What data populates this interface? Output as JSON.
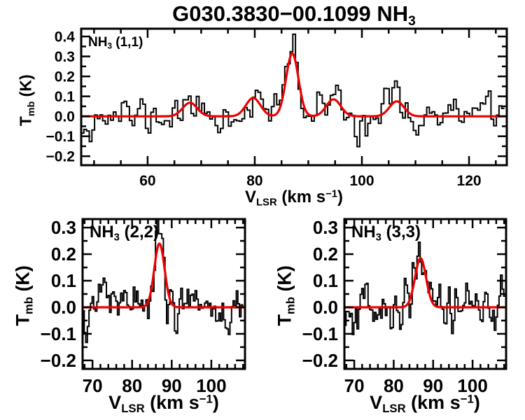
{
  "title": {
    "parts": [
      {
        "t": "G030.3830−00.1099 NH"
      },
      {
        "t": "3",
        "script": "sub"
      }
    ]
  },
  "axis_labels": {
    "x": {
      "parts": [
        {
          "t": "V"
        },
        {
          "t": "LSR",
          "script": "sub"
        },
        {
          "t": " (km s"
        },
        {
          "t": "−1",
          "script": "sup"
        },
        {
          "t": ")"
        }
      ]
    },
    "y": {
      "parts": [
        {
          "t": "T"
        },
        {
          "t": "mb",
          "script": "sub"
        },
        {
          "t": " (K)"
        }
      ]
    }
  },
  "colors": {
    "fit_line": "#ee0000",
    "spectrum_line": "#000000",
    "frame": "#000000",
    "background": "#ffffff"
  },
  "chart_data": [
    {
      "type": "line",
      "name": "NH3 (1,1) spectrum",
      "label_parts": [
        {
          "t": "NH"
        },
        {
          "t": "3",
          "script": "sub"
        },
        {
          "t": " (1,1)"
        }
      ],
      "x_range": [
        47.6,
        127.05
      ],
      "y_range": [
        -0.245,
        0.439
      ],
      "x_ticks": [
        {
          "v": 60,
          "label": "60"
        },
        {
          "v": 80,
          "label": "80"
        },
        {
          "v": 100,
          "label": "100"
        },
        {
          "v": 120,
          "label": "120"
        }
      ],
      "y_ticks": [
        {
          "v": -0.2,
          "label": "−0.2"
        },
        {
          "v": -0.1,
          "label": "−0.1"
        },
        {
          "v": 0.0,
          "label": "0.0"
        },
        {
          "v": 0.1,
          "label": "0.1"
        },
        {
          "v": 0.2,
          "label": "0.2"
        },
        {
          "v": 0.3,
          "label": "0.3"
        },
        {
          "v": 0.4,
          "label": "0.4"
        }
      ],
      "x_minor_step": 5,
      "y_minor_step": 0.05,
      "channel_width": 0.5,
      "noise_sigma": 0.052,
      "noise_seed": 11,
      "fit_components": [
        {
          "center": 87.0,
          "amp": 0.315,
          "sigma": 1.15
        },
        {
          "center": 79.7,
          "amp": 0.092,
          "sigma": 1.35
        },
        {
          "center": 94.7,
          "amp": 0.085,
          "sigma": 1.35
        },
        {
          "center": 67.9,
          "amp": 0.068,
          "sigma": 1.35
        },
        {
          "center": 106.5,
          "amp": 0.075,
          "sigma": 1.35
        }
      ],
      "hist_extra": [
        {
          "center": 86.8,
          "amp": 0.05,
          "sigma": 0.5
        }
      ]
    },
    {
      "type": "line",
      "name": "NH3 (2,2) spectrum",
      "label_parts": [
        {
          "t": "NH"
        },
        {
          "t": "3",
          "script": "sub"
        },
        {
          "t": " (2,2)"
        }
      ],
      "x_range": [
        67.5,
        108.5
      ],
      "y_range": [
        -0.232,
        0.332
      ],
      "x_ticks": [
        {
          "v": 70,
          "label": "70"
        },
        {
          "v": 80,
          "label": "80"
        },
        {
          "v": 90,
          "label": "90"
        },
        {
          "v": 100,
          "label": "100"
        }
      ],
      "y_ticks": [
        {
          "v": -0.2,
          "label": "−0.2"
        },
        {
          "v": -0.1,
          "label": "−0.1"
        },
        {
          "v": 0.0,
          "label": "0.0"
        },
        {
          "v": 0.1,
          "label": "0.1"
        },
        {
          "v": 0.2,
          "label": "0.2"
        },
        {
          "v": 0.3,
          "label": "0.3"
        }
      ],
      "x_minor_step": 2,
      "y_minor_step": 0.05,
      "channel_width": 0.4,
      "noise_sigma": 0.058,
      "noise_seed": 5,
      "fit_components": [
        {
          "center": 86.9,
          "amp": 0.24,
          "sigma": 1.3
        }
      ],
      "hist_extra": [
        {
          "center": 86.7,
          "amp": 0.025,
          "sigma": 0.5
        }
      ]
    },
    {
      "type": "line",
      "name": "NH3 (3,3) spectrum",
      "label_parts": [
        {
          "t": "NH"
        },
        {
          "t": "3",
          "script": "sub"
        },
        {
          "t": " (3,3)"
        }
      ],
      "x_range": [
        67.5,
        108.5
      ],
      "y_range": [
        -0.232,
        0.332
      ],
      "x_ticks": [
        {
          "v": 70,
          "label": "70"
        },
        {
          "v": 80,
          "label": "80"
        },
        {
          "v": 90,
          "label": "90"
        },
        {
          "v": 100,
          "label": "100"
        }
      ],
      "y_ticks": [
        {
          "v": -0.2,
          "label": "−0.2"
        },
        {
          "v": -0.1,
          "label": "−0.1"
        },
        {
          "v": 0.0,
          "label": "0.0"
        },
        {
          "v": 0.1,
          "label": "0.1"
        },
        {
          "v": 0.2,
          "label": "0.2"
        },
        {
          "v": 0.3,
          "label": "0.3"
        }
      ],
      "x_minor_step": 2,
      "y_minor_step": 0.05,
      "channel_width": 0.4,
      "noise_sigma": 0.052,
      "noise_seed": 19,
      "fit_components": [
        {
          "center": 86.8,
          "amp": 0.185,
          "sigma": 1.4
        }
      ],
      "hist_extra": [
        {
          "center": 86.4,
          "amp": 0.06,
          "sigma": 0.55
        }
      ]
    }
  ]
}
